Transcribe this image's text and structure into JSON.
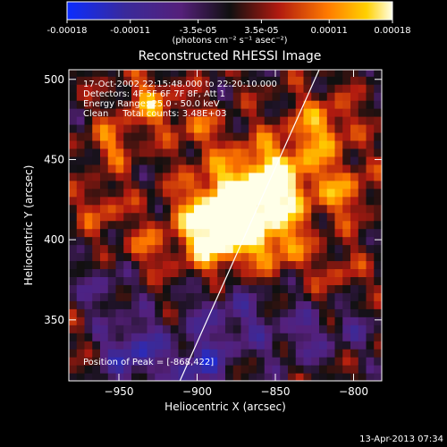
{
  "colorbar": {
    "tick_labels": [
      "-0.00018",
      "-0.00011",
      "-3.5e-05",
      "3.5e-05",
      "0.00011",
      "0.00018"
    ],
    "unit_label": "(photons cm⁻² s⁻¹ asec⁻²)",
    "range": [
      -0.00018,
      0.00018
    ]
  },
  "chart_data": {
    "type": "heatmap",
    "title": "Reconstructed RHESSI Image",
    "xlabel": "Heliocentric X (arcsec)",
    "ylabel": "Heliocentric Y (arcsec)",
    "xlim": [
      -982,
      -782
    ],
    "ylim": [
      312,
      506
    ],
    "x_ticks": [
      {
        "value": -950,
        "label": "−950"
      },
      {
        "value": -900,
        "label": "−900"
      },
      {
        "value": -850,
        "label": "−850"
      },
      {
        "value": -800,
        "label": "−800"
      }
    ],
    "y_ticks": [
      {
        "value": 350,
        "label": "350"
      },
      {
        "value": 400,
        "label": "400"
      },
      {
        "value": 450,
        "label": "450"
      },
      {
        "value": 500,
        "label": "500"
      }
    ],
    "info_lines": [
      "17-Oct-2002 22:15:48.000 to 22:20:10.000",
      "Detectors: 4F 5F 6F 7F 8F, Att 1",
      "Energy Range: 25.0 - 50.0 keV",
      "Clean     Total counts: 3.48E+03"
    ],
    "peak_label": "Position of Peak = [-868,422]",
    "peak": [
      -868,
      422
    ],
    "limb_line": [
      [
        -911,
        312
      ],
      [
        -822,
        506
      ]
    ],
    "colormap": "blue-purple-red-yellow-white"
  },
  "footer": {
    "date": "13-Apr-2013 07:34"
  }
}
